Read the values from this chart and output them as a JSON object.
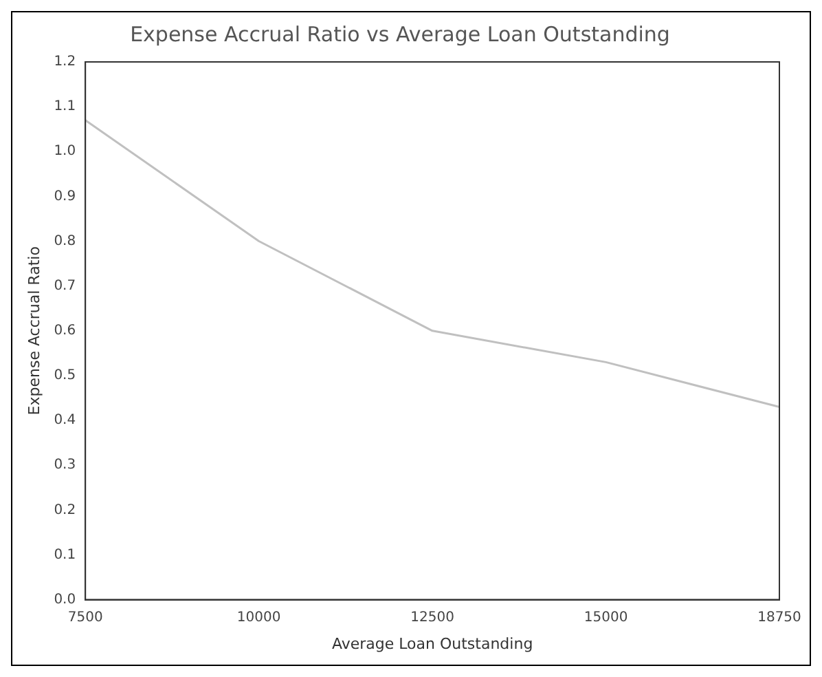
{
  "chart_data": {
    "type": "line",
    "title": "Expense Accrual Ratio vs Average Loan Outstanding",
    "xlabel": "Average Loan Outstanding",
    "ylabel": "Expense Accrual Ratio",
    "categories": [
      "7500",
      "10000",
      "12500",
      "15000",
      "18750"
    ],
    "series": [
      {
        "color": "#c0c0c0",
        "values": [
          1.07,
          0.8,
          0.6,
          0.53,
          0.43
        ]
      }
    ],
    "ylim": [
      0,
      1.2
    ],
    "yticks": [
      {
        "value": 0,
        "label": "0.0"
      },
      0.1,
      0.2,
      0.3,
      0.4,
      0.5,
      0.6,
      0.7,
      0.8,
      0.9,
      {
        "value": 1,
        "label": "1.0"
      },
      1.1,
      1.2
    ],
    "grid": false,
    "legend": false,
    "marker": "none",
    "line_style": "solid"
  }
}
